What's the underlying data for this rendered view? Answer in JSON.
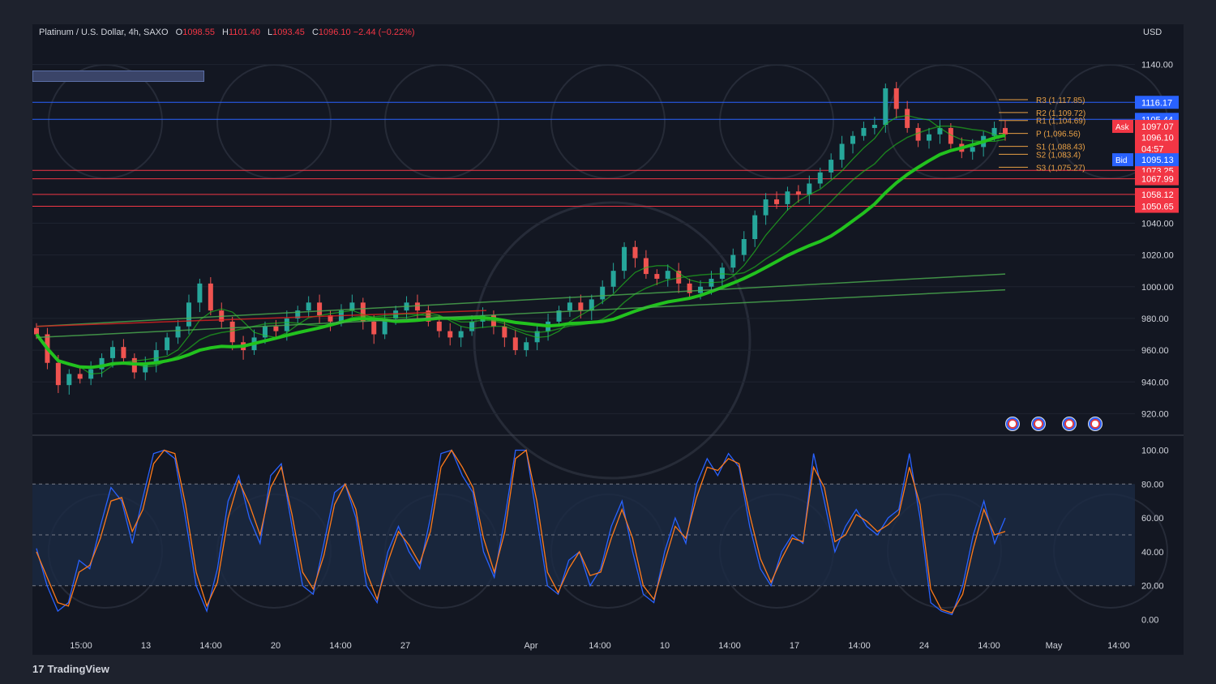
{
  "header": {
    "symbol": "Platinum / U.S. Dollar, 4h, SAXO",
    "open_label": "O",
    "open": "1098.55",
    "high_label": "H",
    "high": "1101.40",
    "low_label": "L",
    "low": "1093.45",
    "close_label": "C",
    "close": "1096.10",
    "change": "−2.44 (−0.22%)"
  },
  "currency": "USD",
  "brand": {
    "logo": "17",
    "name": "TradingView"
  },
  "colors": {
    "background": "#131722",
    "grid": "#1f2430",
    "up": "#26a69a",
    "down": "#ef5350",
    "axis_text": "#d1d4dc",
    "pivot": "#e8a045",
    "stoch_k": "#2962ff",
    "stoch_d": "#ff7a1a",
    "ma_green": "#22c21e",
    "ma_red": "#e02020",
    "price_label": "#f23645",
    "ask_label": "#f23645",
    "bid_label": "#2962ff",
    "hline_blue": "#2962ff",
    "hline_red": "#f23645"
  },
  "chart_data": [
    {
      "type": "candlestick",
      "title": "Platinum / U.S. Dollar, 4h, SAXO",
      "x_ticks": [
        "15:00",
        "13",
        "14:00",
        "20",
        "14:00",
        "27",
        "Apr",
        "14:00",
        "10",
        "14:00",
        "17",
        "14:00",
        "24",
        "14:00",
        "May",
        "14:00"
      ],
      "y_ticks": [
        "1140.00",
        "1040.00",
        "1020.00",
        "1000.00",
        "980.00",
        "960.00",
        "940.00",
        "920.00"
      ],
      "ylim": [
        910,
        1150
      ],
      "close_series": [
        970,
        952,
        938,
        945,
        942,
        948,
        955,
        962,
        955,
        946,
        952,
        960,
        968,
        975,
        990,
        1002,
        985,
        978,
        965,
        960,
        968,
        975,
        972,
        980,
        985,
        990,
        982,
        978,
        985,
        990,
        978,
        970,
        980,
        985,
        990,
        985,
        978,
        972,
        968,
        972,
        978,
        982,
        975,
        968,
        960,
        965,
        972,
        978,
        985,
        990,
        985,
        992,
        1000,
        1010,
        1025,
        1018,
        1008,
        1005,
        1010,
        1002,
        996,
        1000,
        1005,
        1012,
        1020,
        1030,
        1045,
        1055,
        1052,
        1060,
        1058,
        1065,
        1072,
        1080,
        1090,
        1095,
        1100,
        1102,
        1125,
        1112,
        1100,
        1092,
        1096,
        1100,
        1090,
        1085,
        1088,
        1095,
        1100,
        1096
      ],
      "moving_averages": [
        {
          "values_start": 985,
          "values_end": 1067,
          "style": "thick-green"
        },
        {
          "values_start": 975,
          "values_end": 1008,
          "style": "thin-green"
        },
        {
          "values_start": 968,
          "values_end": 998,
          "style": "thin-green"
        }
      ],
      "horizontal_levels": [
        {
          "label": "1116.17",
          "value": 1116.17,
          "color": "#2962ff"
        },
        {
          "label": "1105.44",
          "value": 1105.44,
          "color": "#2962ff"
        },
        {
          "label": "1073.25",
          "value": 1073.25,
          "color": "#f23645"
        },
        {
          "label": "1067.99",
          "value": 1067.99,
          "color": "#f23645"
        },
        {
          "label": "1058.12",
          "value": 1058.12,
          "color": "#f23645"
        },
        {
          "label": "1050.65",
          "value": 1050.65,
          "color": "#f23645"
        }
      ],
      "price_labels": {
        "ask_tag": "Ask",
        "ask": "1097.07",
        "last": "1096.10",
        "countdown": "04:57",
        "bid_tag": "Bid",
        "bid": "1095.13"
      },
      "pivots": [
        {
          "label": "R3 (1,117.85)",
          "value": 1117.85
        },
        {
          "label": "R2 (1,109.72)",
          "value": 1109.72
        },
        {
          "label": "R1 (1,104.69)",
          "value": 1104.69
        },
        {
          "label": "P (1,096.56)",
          "value": 1096.56
        },
        {
          "label": "S1 (1,088.43)",
          "value": 1088.43
        },
        {
          "label": "S2 (1,083.4)",
          "value": 1083.4
        },
        {
          "label": "S3 (1,075.27)",
          "value": 1075.27
        }
      ]
    },
    {
      "type": "line",
      "title": "Stochastic",
      "y_ticks": [
        "100.00",
        "80.00",
        "60.00",
        "40.00",
        "20.00",
        "0.00"
      ],
      "ylim": [
        -5,
        105
      ],
      "bands": [
        20,
        50,
        80
      ],
      "series": [
        {
          "values": [
            42,
            20,
            5,
            10,
            35,
            30,
            55,
            78,
            70,
            45,
            72,
            98,
            100,
            95,
            60,
            20,
            5,
            30,
            70,
            85,
            60,
            45,
            85,
            92,
            55,
            20,
            15,
            45,
            75,
            80,
            60,
            20,
            10,
            40,
            55,
            40,
            30,
            60,
            98,
            100,
            85,
            75,
            40,
            25,
            60,
            100,
            100,
            60,
            20,
            15,
            35,
            40,
            20,
            30,
            55,
            70,
            40,
            15,
            10,
            40,
            60,
            45,
            80,
            95,
            85,
            98,
            90,
            55,
            30,
            20,
            40,
            50,
            45,
            98,
            70,
            40,
            55,
            65,
            55,
            50,
            60,
            65,
            98,
            60,
            10,
            5,
            3,
            20,
            50,
            70,
            45,
            60
          ]
        },
        {
          "values": [
            40,
            25,
            10,
            8,
            28,
            32,
            48,
            70,
            72,
            52,
            65,
            92,
            100,
            98,
            68,
            28,
            8,
            22,
            60,
            82,
            68,
            50,
            78,
            90,
            62,
            28,
            18,
            38,
            68,
            80,
            65,
            28,
            12,
            34,
            52,
            44,
            33,
            52,
            90,
            100,
            90,
            78,
            48,
            28,
            52,
            95,
            100,
            70,
            28,
            16,
            30,
            40,
            26,
            28,
            48,
            65,
            48,
            20,
            12,
            34,
            55,
            48,
            72,
            90,
            88,
            95,
            92,
            62,
            36,
            22,
            36,
            48,
            46,
            90,
            78,
            46,
            50,
            62,
            58,
            52,
            56,
            62,
            90,
            68,
            18,
            6,
            4,
            15,
            42,
            65,
            50,
            52
          ]
        }
      ]
    }
  ]
}
